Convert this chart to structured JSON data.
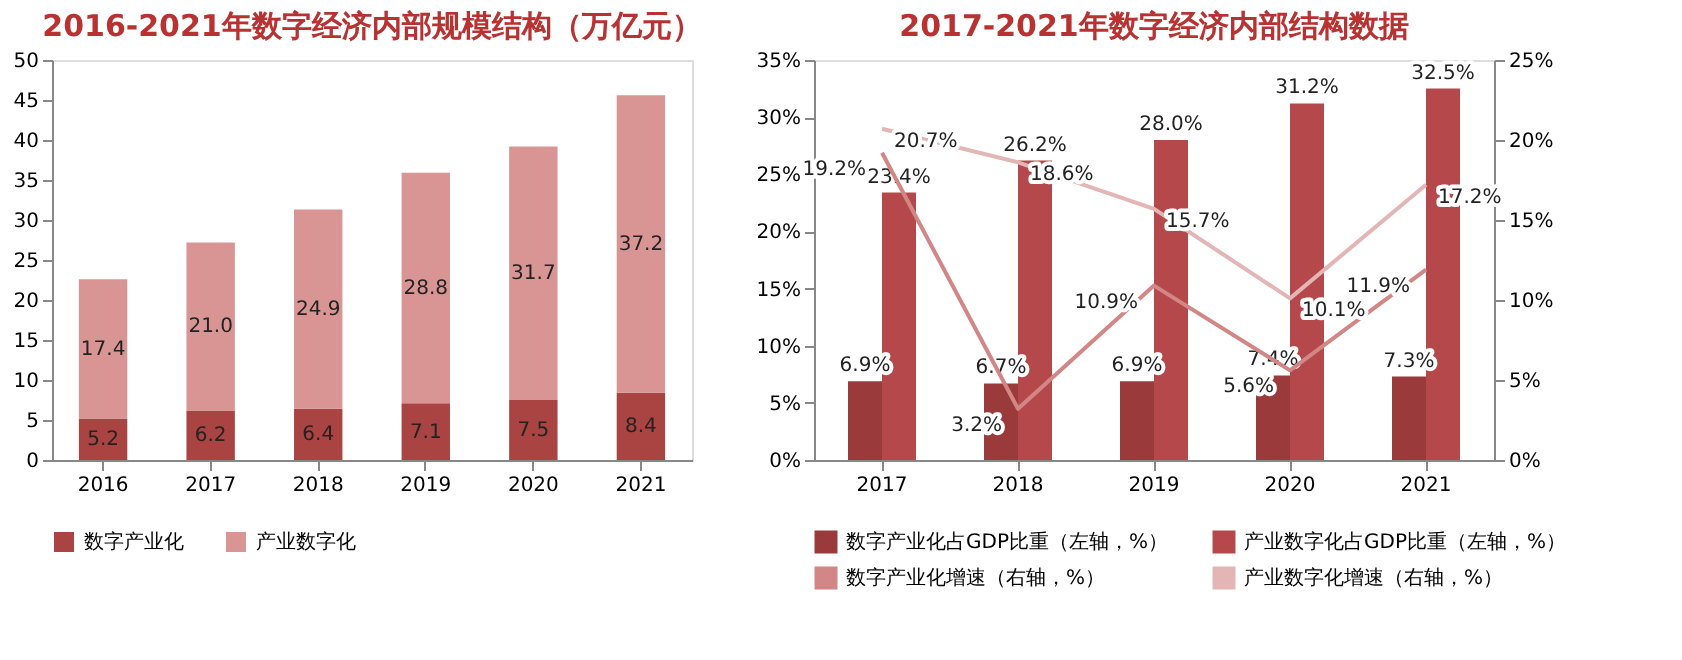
{
  "chart_data": [
    {
      "type": "bar",
      "title": "2016-2021年数字经济内部规模结构（万亿元）",
      "categories": [
        "2016",
        "2017",
        "2018",
        "2019",
        "2020",
        "2021"
      ],
      "stacked": true,
      "legend": "bottom",
      "ylim": [
        0,
        50
      ],
      "yticks": [
        0,
        5,
        10,
        15,
        20,
        25,
        30,
        35,
        40,
        45,
        50
      ],
      "series": [
        {
          "name": "数字产业化",
          "color": "#a94442",
          "values": [
            5.2,
            6.2,
            6.4,
            7.1,
            7.5,
            8.4
          ],
          "value_labels": [
            "5.2",
            "6.2",
            "6.4",
            "7.1",
            "7.5",
            "8.4"
          ]
        },
        {
          "name": "产业数字化",
          "color": "#d99594",
          "values": [
            17.4,
            21.0,
            24.9,
            28.8,
            31.7,
            37.2
          ],
          "value_labels": [
            "17.4",
            "21.0",
            "24.9",
            "28.8",
            "31.7",
            "37.2"
          ]
        }
      ]
    },
    {
      "type": "bar",
      "title": "2017-2021年数字经济内部结构数据",
      "categories": [
        "2017",
        "2018",
        "2019",
        "2020",
        "2021"
      ],
      "legend": "bottom",
      "line_style": "solid",
      "marker": "none",
      "ylim": [
        0,
        35
      ],
      "yticks": [
        {
          "value": 0,
          "label": "0%"
        },
        {
          "value": 5,
          "label": "5%"
        },
        {
          "value": 10,
          "label": "10%"
        },
        {
          "value": 15,
          "label": "15%"
        },
        {
          "value": 20,
          "label": "20%"
        },
        {
          "value": 25,
          "label": "25%"
        },
        {
          "value": 30,
          "label": "30%"
        },
        {
          "value": 35,
          "label": "35%"
        }
      ],
      "y2lim": [
        0,
        25
      ],
      "y2ticks": [
        {
          "value": 0,
          "label": "0%"
        },
        {
          "value": 5,
          "label": "5%"
        },
        {
          "value": 10,
          "label": "10%"
        },
        {
          "value": 15,
          "label": "15%"
        },
        {
          "value": 20,
          "label": "20%"
        },
        {
          "value": 25,
          "label": "25%"
        }
      ],
      "series": [
        {
          "name": "数字产业化占GDP比重（左轴，%）",
          "type": "bar",
          "color": "#9b3a3a",
          "values": [
            6.9,
            6.7,
            6.9,
            7.4,
            7.3
          ],
          "value_labels": [
            "6.9%",
            "6.7%",
            "6.9%",
            "7.4%",
            "7.3%"
          ]
        },
        {
          "name": "产业数字化占GDP比重（左轴，%）",
          "type": "bar",
          "color": "#b5484a",
          "values": [
            23.4,
            26.2,
            28.0,
            31.2,
            32.5
          ],
          "value_labels": [
            "23.4%",
            "26.2%",
            "28.0%",
            "31.2%",
            "32.5%"
          ]
        },
        {
          "name": "数字产业化增速（右轴，%）",
          "type": "line",
          "axis": "y2",
          "color": "#d38686",
          "values": [
            19.2,
            3.2,
            10.9,
            5.6,
            11.9
          ],
          "value_labels": [
            "19.2%",
            "3.2%",
            "10.9%",
            "5.6%",
            "11.9%"
          ]
        },
        {
          "name": "产业数字化增速（右轴，%）",
          "type": "line",
          "axis": "y2",
          "color": "#e3b5b5",
          "values": [
            20.7,
            18.6,
            15.7,
            10.1,
            17.2
          ],
          "value_labels": [
            "20.7%",
            "18.6%",
            "15.7%",
            "10.1%",
            "17.2%"
          ]
        }
      ]
    }
  ]
}
